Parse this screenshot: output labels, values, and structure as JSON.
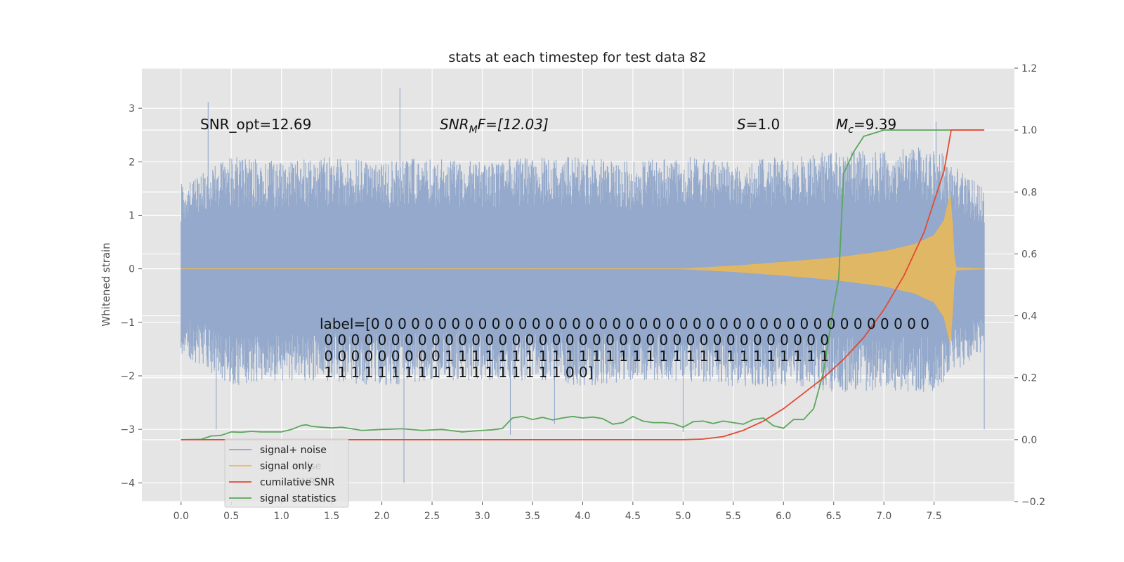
{
  "chart_data": {
    "type": "line",
    "title": "stats at each timestep for test data 82",
    "ylabel": "Whitened strain",
    "xlabel": "",
    "xlim": [
      -0.39,
      8.3
    ],
    "ylim": [
      -4.35,
      3.75
    ],
    "y2lim": [
      -0.2,
      1.2
    ],
    "xticks": [
      "0.0",
      "0.5",
      "1.0",
      "1.5",
      "2.0",
      "2.5",
      "3.0",
      "3.5",
      "4.0",
      "4.5",
      "5.0",
      "5.5",
      "6.0",
      "6.5",
      "7.0",
      "7.5"
    ],
    "yticks": [
      "3",
      "2",
      "1",
      "0",
      "−1",
      "−2",
      "−3",
      "−4"
    ],
    "y2ticks": [
      "1.2",
      "1.0",
      "0.8",
      "0.6",
      "0.4",
      "0.2",
      "0.0",
      "−0.2"
    ],
    "grid": true,
    "legend_position": "lower-left",
    "series": [
      {
        "name": "signal+ noise",
        "axis": "left",
        "color": "#8fa5c9",
        "representation": "dense noise, envelope by x",
        "x": [
          0.0,
          0.5,
          1.0,
          1.5,
          2.0,
          2.5,
          3.0,
          3.5,
          4.0,
          4.5,
          5.0,
          5.5,
          6.0,
          6.5,
          7.0,
          7.5,
          8.0
        ],
        "upper": [
          1.6,
          2.1,
          2.0,
          2.1,
          2.0,
          2.1,
          2.0,
          2.1,
          2.1,
          2.0,
          2.1,
          2.0,
          2.1,
          2.2,
          2.2,
          2.3,
          1.5
        ],
        "lower": [
          -1.6,
          -2.2,
          -2.1,
          -2.1,
          -2.2,
          -2.1,
          -2.1,
          -2.1,
          -2.2,
          -2.1,
          -2.1,
          -2.2,
          -2.2,
          -2.3,
          -2.3,
          -2.3,
          -1.5
        ],
        "peaks": [
          [
            0.27,
            3.12
          ],
          [
            0.35,
            -3.0
          ],
          [
            2.18,
            3.38
          ],
          [
            2.22,
            -4.0
          ],
          [
            3.28,
            -3.1
          ],
          [
            3.72,
            -2.9
          ],
          [
            7.52,
            2.75
          ],
          [
            8.0,
            -3.0
          ],
          [
            5.0,
            -3.05
          ]
        ]
      },
      {
        "name": "signal only",
        "axis": "left",
        "color": "#e8b85a",
        "representation": "chirp amplitude envelope",
        "x": [
          0.0,
          5.0,
          5.5,
          6.0,
          6.5,
          7.0,
          7.3,
          7.5,
          7.6,
          7.67,
          7.69,
          7.72,
          8.0
        ],
        "amplitude": [
          0.0,
          0.0,
          0.05,
          0.12,
          0.2,
          0.32,
          0.45,
          0.62,
          0.9,
          1.45,
          0.3,
          0.02,
          0.0
        ]
      },
      {
        "name": "cumilative SNR",
        "axis": "right",
        "color": "#e24a33",
        "x": [
          0.0,
          5.0,
          5.2,
          5.4,
          5.6,
          5.8,
          6.0,
          6.2,
          6.4,
          6.6,
          6.8,
          7.0,
          7.2,
          7.4,
          7.6,
          7.67,
          8.0
        ],
        "y": [
          0.0,
          0.0,
          0.002,
          0.01,
          0.03,
          0.06,
          0.1,
          0.15,
          0.2,
          0.26,
          0.33,
          0.42,
          0.53,
          0.67,
          0.87,
          1.0,
          1.0
        ]
      },
      {
        "name": "signal statistics",
        "axis": "right",
        "color": "#5aa75a",
        "x": [
          0.0,
          0.2,
          0.3,
          0.4,
          0.5,
          0.6,
          0.7,
          0.8,
          1.0,
          1.1,
          1.2,
          1.25,
          1.3,
          1.4,
          1.5,
          1.6,
          1.7,
          1.8,
          2.0,
          2.2,
          2.4,
          2.6,
          2.8,
          3.0,
          3.1,
          3.2,
          3.3,
          3.4,
          3.5,
          3.6,
          3.7,
          3.8,
          3.9,
          4.0,
          4.1,
          4.2,
          4.3,
          4.4,
          4.5,
          4.6,
          4.7,
          4.8,
          4.9,
          5.0,
          5.1,
          5.2,
          5.3,
          5.4,
          5.5,
          5.6,
          5.7,
          5.8,
          5.9,
          6.0,
          6.1,
          6.2,
          6.3,
          6.4,
          6.5,
          6.55,
          6.6,
          6.7,
          6.8,
          6.9,
          7.0,
          7.2,
          7.5,
          8.0
        ],
        "y": [
          0.0,
          0.001,
          0.012,
          0.014,
          0.025,
          0.024,
          0.027,
          0.025,
          0.025,
          0.033,
          0.046,
          0.048,
          0.043,
          0.04,
          0.038,
          0.04,
          0.035,
          0.03,
          0.033,
          0.035,
          0.03,
          0.033,
          0.025,
          0.03,
          0.032,
          0.036,
          0.07,
          0.075,
          0.065,
          0.072,
          0.064,
          0.07,
          0.075,
          0.07,
          0.073,
          0.068,
          0.05,
          0.055,
          0.075,
          0.06,
          0.055,
          0.055,
          0.052,
          0.04,
          0.058,
          0.06,
          0.052,
          0.06,
          0.055,
          0.05,
          0.065,
          0.07,
          0.045,
          0.037,
          0.065,
          0.065,
          0.1,
          0.22,
          0.43,
          0.52,
          0.86,
          0.93,
          0.98,
          0.99,
          1.0,
          1.0,
          1.0,
          1.0
        ]
      }
    ],
    "annotations": {
      "snr_opt": "SNR_opt=12.69",
      "snr_mf_base": "SNR",
      "snr_mf_sub": "M",
      "snr_mf_rest": "F=[12.03]",
      "s_var": "S",
      "s_rest": "=1.0",
      "mc_var": "M",
      "mc_sub": "c",
      "mc_rest": "=9.39",
      "label_lines": [
        "label=[0 0 0 0 0 0 0 0 0 0 0 0 0 0 0 0 0 0 0 0 0 0 0 0 0 0 0 0 0 0 0 0 0 0 0 0 0 0 0 0 0 0",
        " 0 0 0 0 0 0 0 0 0 0 0 0 0 0 0 0 0 0 0 0 0 0 0 0 0 0 0 0 0 0 0 0 0 0 0 0 0 0",
        " 0 0 0 0 0 0 0 0 0 1 1 1 1 1 1 1 1 1 1 1 1 1 1 1 1 1 1 1 1 1 1 1 1 1 1 1 1 1",
        " 1 1 1 1 1 1 1 1 1 1 1 1 1 1 1 1 1 1 0 0]"
      ]
    },
    "legend": {
      "items": [
        "signal+ noise",
        "signal only",
        "cumilative SNR",
        "signal statistics"
      ],
      "ghost_text": [
        "noise",
        "SNR",
        "istics"
      ]
    }
  }
}
